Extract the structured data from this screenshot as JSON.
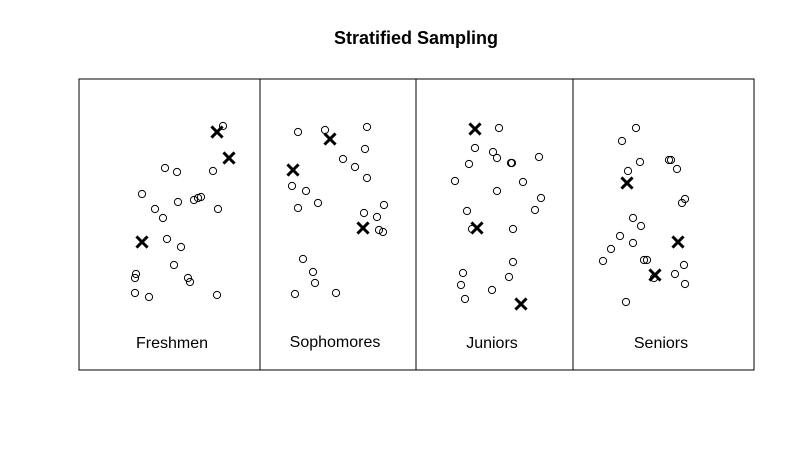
{
  "title": "Stratified Sampling",
  "colors": {
    "stroke": "#000000",
    "background": "#ffffff"
  },
  "strata": [
    {
      "name": "Freshmen"
    },
    {
      "name": "Sophomores"
    },
    {
      "name": "Juniors"
    },
    {
      "name": "Seniors"
    }
  ],
  "legend_symbols": {
    "unsampled": "open-circle",
    "sampled": "cross-mark"
  }
}
